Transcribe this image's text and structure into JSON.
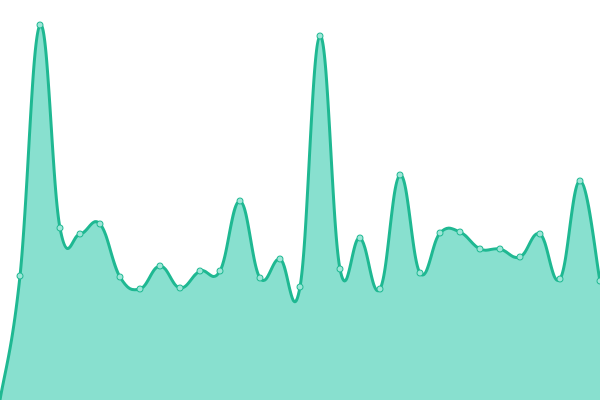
{
  "chart_data": {
    "type": "area",
    "values": [
      0,
      124,
      375,
      172,
      166,
      176,
      123,
      111,
      134,
      112,
      129,
      129,
      199,
      122,
      141,
      113,
      364,
      131,
      162,
      111,
      225,
      127,
      167,
      168,
      151,
      151,
      143,
      166,
      121,
      219,
      119
    ],
    "ylim": [
      0,
      400
    ],
    "color": "#1fb892",
    "fill_color": "#88e0cf",
    "marker_color": "#9fe6d8"
  }
}
